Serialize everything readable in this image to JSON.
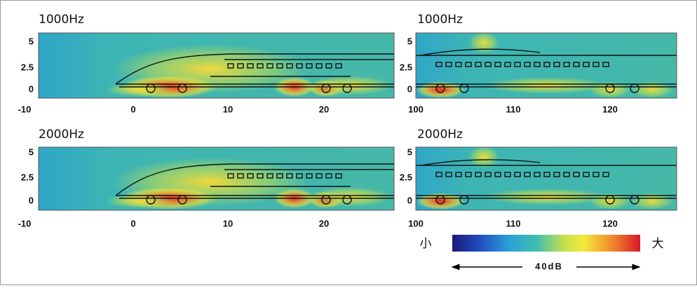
{
  "panels": [
    {
      "title": "1000Hz",
      "x_ticks": [
        "-10",
        "0",
        "10",
        "20"
      ],
      "y_ticks": [
        "5",
        "2.5",
        "0"
      ]
    },
    {
      "title": "1000Hz",
      "x_ticks": [
        "100",
        "110",
        "120"
      ],
      "y_ticks": [
        "5",
        "2.5",
        "0"
      ]
    },
    {
      "title": "2000Hz",
      "x_ticks": [
        "-10",
        "0",
        "10",
        "20"
      ],
      "y_ticks": [
        "5",
        "2.5",
        "0"
      ]
    },
    {
      "title": "2000Hz",
      "x_ticks": [
        "100",
        "110",
        "120"
      ],
      "y_ticks": [
        "5",
        "2.5",
        "0"
      ]
    }
  ],
  "legend": {
    "low": "小",
    "high": "大",
    "range": "40dB"
  }
}
